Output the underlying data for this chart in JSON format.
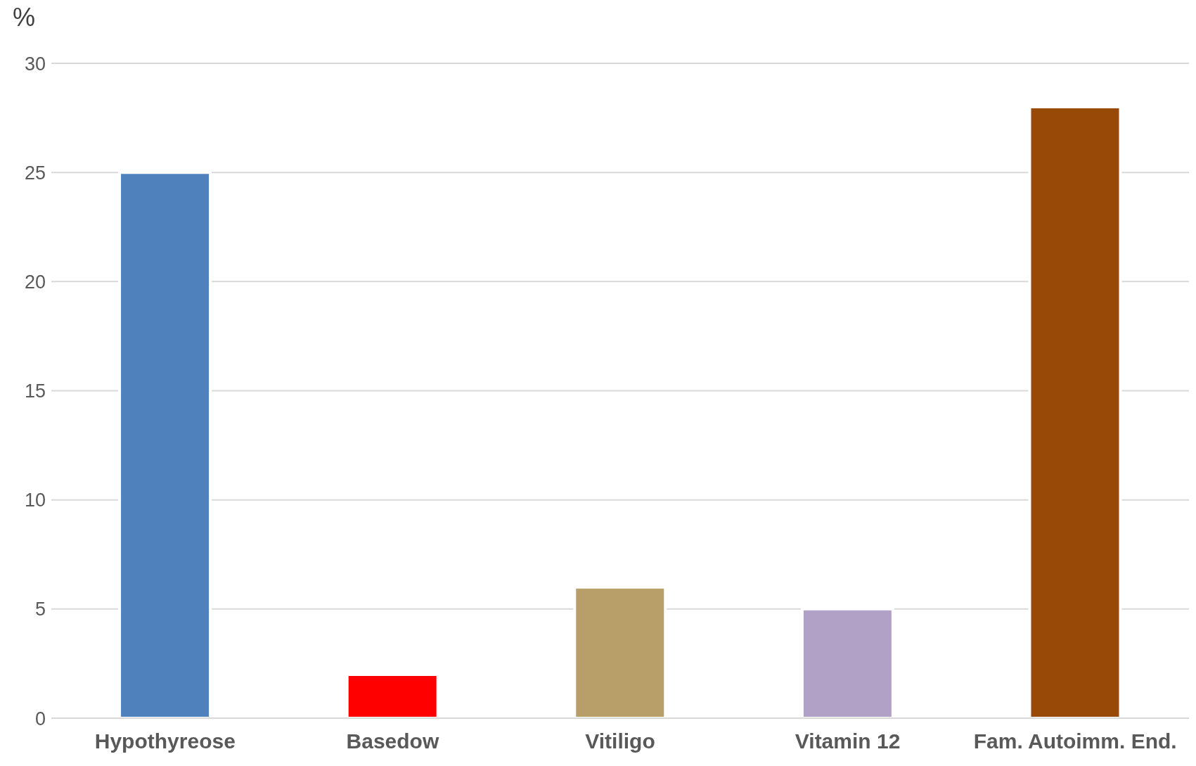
{
  "chart_data": {
    "type": "bar",
    "ylabel": "%",
    "categories": [
      "Hypothyreose",
      "Basedow",
      "Vitiligo",
      "Vitamin 12",
      "Fam. Autoimm. End."
    ],
    "values": [
      25,
      2,
      6,
      5,
      28
    ],
    "colors": [
      "#4f81bd",
      "#ff0000",
      "#b89f6a",
      "#b2a1c7",
      "#984807"
    ],
    "ylim": [
      0,
      30
    ],
    "yticks": [
      0,
      5,
      10,
      15,
      20,
      25,
      30
    ],
    "grid": "y"
  }
}
